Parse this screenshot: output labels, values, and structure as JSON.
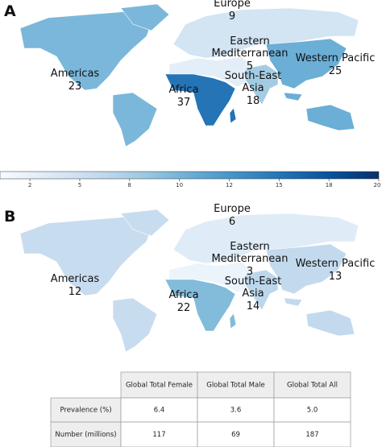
{
  "panels": [
    {
      "label": "A",
      "clim": [
        0,
        50
      ],
      "regions": [
        {
          "name": [
            "Americas"
          ],
          "value": 23
        },
        {
          "name": [
            "Europe"
          ],
          "value": 9
        },
        {
          "name": [
            "Eastern",
            "Mediterranean"
          ],
          "value": 5
        },
        {
          "name": [
            "Africa"
          ],
          "value": 37
        },
        {
          "name": [
            "South-East",
            "Asia"
          ],
          "value": 18
        },
        {
          "name": [
            "Western Pacific"
          ],
          "value": 25
        }
      ]
    },
    {
      "label": "B",
      "clim": [
        0,
        50
      ],
      "regions": [
        {
          "name": [
            "Americas"
          ],
          "value": 12
        },
        {
          "name": [
            "Europe"
          ],
          "value": 6
        },
        {
          "name": [
            "Eastern",
            "Mediterranean"
          ],
          "value": 3
        },
        {
          "name": [
            "Africa"
          ],
          "value": 22
        },
        {
          "name": [
            "South-East",
            "Asia"
          ],
          "value": 14
        },
        {
          "name": [
            "Western Pacific"
          ],
          "value": 13
        }
      ]
    }
  ],
  "colorbar": {
    "xlim": [
      1,
      20
    ],
    "xticks": [
      {
        "value": 2.5,
        "label": "2"
      },
      5,
      {
        "value": 7.5,
        "label": "8"
      },
      10,
      {
        "value": 12.5,
        "label": "12"
      },
      15,
      {
        "value": 17.5,
        "label": "18"
      },
      20
    ]
  },
  "table": {
    "header": [
      "Global Total Female",
      "Global Total Male",
      "Global Total All"
    ],
    "rows": [
      [
        "Prevalence (%)",
        "6.4",
        "3.6",
        "5.0"
      ],
      [
        "Number (millions)",
        "117",
        "69",
        "187"
      ]
    ]
  }
}
